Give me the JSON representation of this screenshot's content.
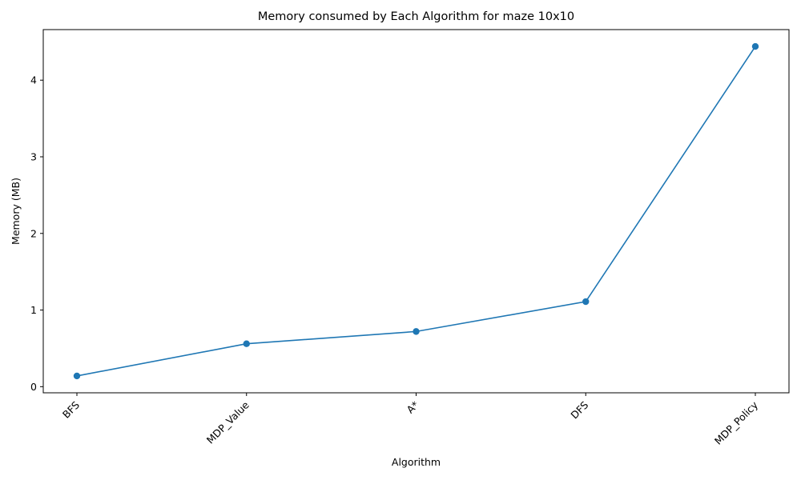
{
  "chart_data": {
    "type": "line",
    "title": "Memory consumed by Each Algorithm for maze 10x10",
    "xlabel": "Algorithm",
    "ylabel": "Memory (MB)",
    "categories": [
      "BFS",
      "MDP_Value",
      "A*",
      "DFS",
      "MDP_Policy"
    ],
    "series": [
      {
        "values": [
          0.14,
          0.56,
          0.72,
          1.11,
          4.44
        ],
        "color": "#1f77b4",
        "marker": "circle"
      }
    ],
    "ylim": [
      -0.08,
      4.66
    ],
    "yticks": [
      0,
      1,
      2,
      3,
      4
    ],
    "grid": false,
    "legend": "none"
  }
}
